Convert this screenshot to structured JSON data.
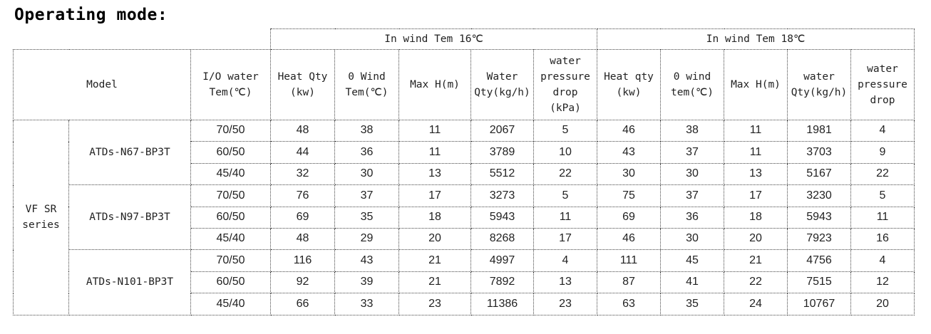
{
  "title": "Operating mode:",
  "group_headers": [
    "In wind Tem 16℃",
    "In wind Tem 18℃"
  ],
  "model_header": "Model",
  "io_header": [
    "I/O water",
    "Tem(℃)"
  ],
  "sub_headers_16": [
    [
      "Heat Qty",
      "(kw)"
    ],
    [
      "0 Wind",
      "Tem(℃)"
    ],
    [
      "Max H(m)"
    ],
    [
      "Water",
      "Qty(kg/h)"
    ],
    [
      "water",
      "pressure",
      "drop",
      "(kPa)"
    ]
  ],
  "sub_headers_18": [
    [
      "Heat qty",
      "(kw)"
    ],
    [
      "0 wind",
      "tem(℃)"
    ],
    [
      "Max H(m)"
    ],
    [
      "water",
      "Qty(kg/h)"
    ],
    [
      "water",
      "pressure",
      "drop"
    ]
  ],
  "series": [
    "VF SR",
    "series"
  ],
  "models": [
    {
      "name": "ATDs-N67-BP3T",
      "rows": [
        {
          "io": "70/50",
          "t16": [
            "48",
            "38",
            "11",
            "2067",
            "5"
          ],
          "t18": [
            "46",
            "38",
            "11",
            "1981",
            "4"
          ]
        },
        {
          "io": "60/50",
          "t16": [
            "44",
            "36",
            "11",
            "3789",
            "10"
          ],
          "t18": [
            "43",
            "37",
            "11",
            "3703",
            "9"
          ]
        },
        {
          "io": "45/40",
          "t16": [
            "32",
            "30",
            "13",
            "5512",
            "22"
          ],
          "t18": [
            "30",
            "30",
            "13",
            "5167",
            "22"
          ]
        }
      ]
    },
    {
      "name": "ATDs-N97-BP3T",
      "rows": [
        {
          "io": "70/50",
          "t16": [
            "76",
            "37",
            "17",
            "3273",
            "5"
          ],
          "t18": [
            "75",
            "37",
            "17",
            "3230",
            "5"
          ]
        },
        {
          "io": "60/50",
          "t16": [
            "69",
            "35",
            "18",
            "5943",
            "11"
          ],
          "t18": [
            "69",
            "36",
            "18",
            "5943",
            "11"
          ]
        },
        {
          "io": "45/40",
          "t16": [
            "48",
            "29",
            "20",
            "8268",
            "17"
          ],
          "t18": [
            "46",
            "30",
            "20",
            "7923",
            "16"
          ]
        }
      ]
    },
    {
      "name": "ATDs-N101-BP3T",
      "rows": [
        {
          "io": "70/50",
          "t16": [
            "116",
            "43",
            "21",
            "4997",
            "4"
          ],
          "t18": [
            "111",
            "45",
            "21",
            "4756",
            "4"
          ]
        },
        {
          "io": "60/50",
          "t16": [
            "92",
            "39",
            "21",
            "7892",
            "13"
          ],
          "t18": [
            "87",
            "41",
            "22",
            "7515",
            "12"
          ]
        },
        {
          "io": "45/40",
          "t16": [
            "66",
            "33",
            "23",
            "11386",
            "23"
          ],
          "t18": [
            "63",
            "35",
            "24",
            "10767",
            "20"
          ]
        }
      ]
    }
  ]
}
